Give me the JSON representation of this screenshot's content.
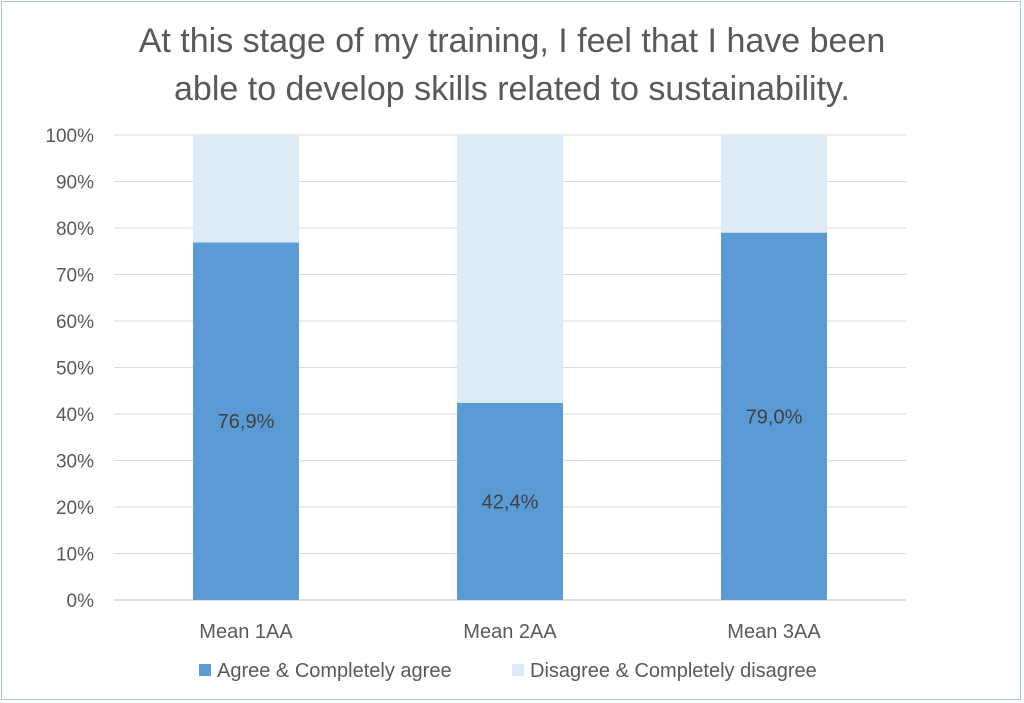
{
  "chart_data": {
    "type": "bar",
    "stacked": true,
    "title": "At this stage of my training, I feel that I have been able to develop skills related to sustainability.",
    "title_lines": [
      "At this stage of my training, I feel that I have been",
      "able to develop skills related to sustainability."
    ],
    "categories": [
      "Mean 1AA",
      "Mean 2AA",
      "Mean 3AA"
    ],
    "series": [
      {
        "name": "Agree & Completely agree",
        "values": [
          76.9,
          42.4,
          79.0
        ],
        "labels": [
          "76,9%",
          "42,4%",
          "79,0%"
        ],
        "color": "#5b9bd5"
      },
      {
        "name": "Disagree & Completely disagree",
        "values": [
          23.1,
          57.6,
          21.0
        ],
        "color": "#ddebf7"
      }
    ],
    "ylim": [
      0,
      100
    ],
    "yticks": [
      "0%",
      "10%",
      "20%",
      "30%",
      "40%",
      "50%",
      "60%",
      "70%",
      "80%",
      "90%",
      "100%"
    ],
    "xlabel": "",
    "ylabel": "",
    "grid": true,
    "legend_position": "bottom"
  }
}
